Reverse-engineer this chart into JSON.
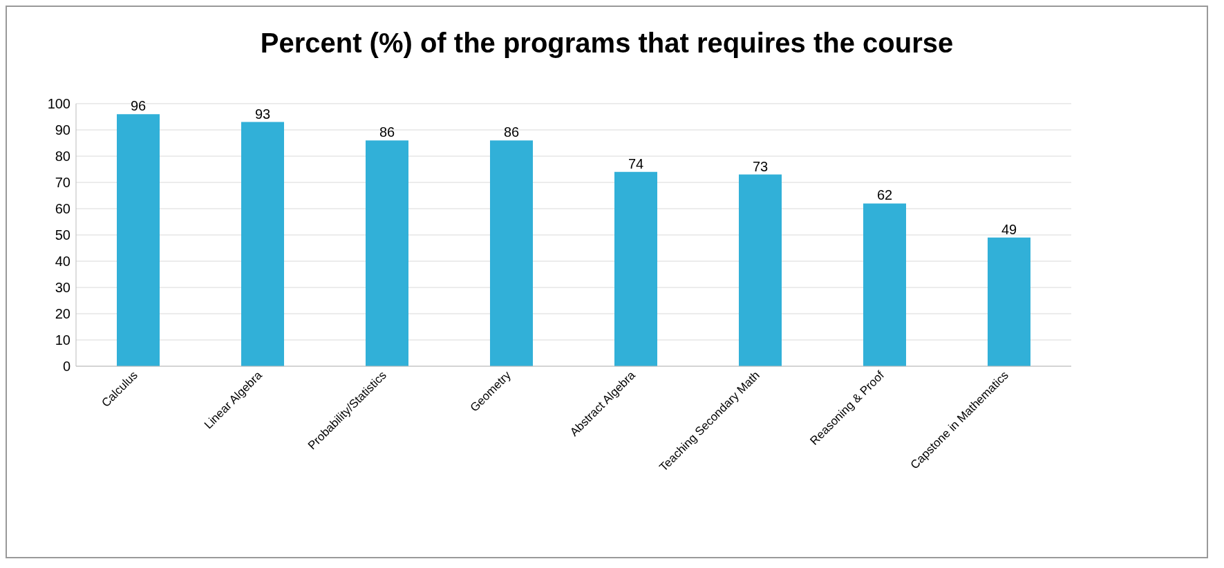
{
  "chart_data": {
    "type": "bar",
    "title": "Percent (%) of the programs that requires the course",
    "categories": [
      "Calculus",
      "Linear Algebra",
      "Probability/Statistics",
      "Geometry",
      "Abstract Algebra",
      "Teaching Secondary Math",
      "Reasoning & Proof",
      "Capstone in Mathematics"
    ],
    "values": [
      96,
      93,
      86,
      86,
      74,
      73,
      62,
      49
    ],
    "color": "#31b0d8",
    "ylim": [
      0,
      100
    ],
    "yticks": [
      0,
      10,
      20,
      30,
      40,
      50,
      60,
      70,
      80,
      90,
      100
    ],
    "grid": "y",
    "data_labels": true
  }
}
